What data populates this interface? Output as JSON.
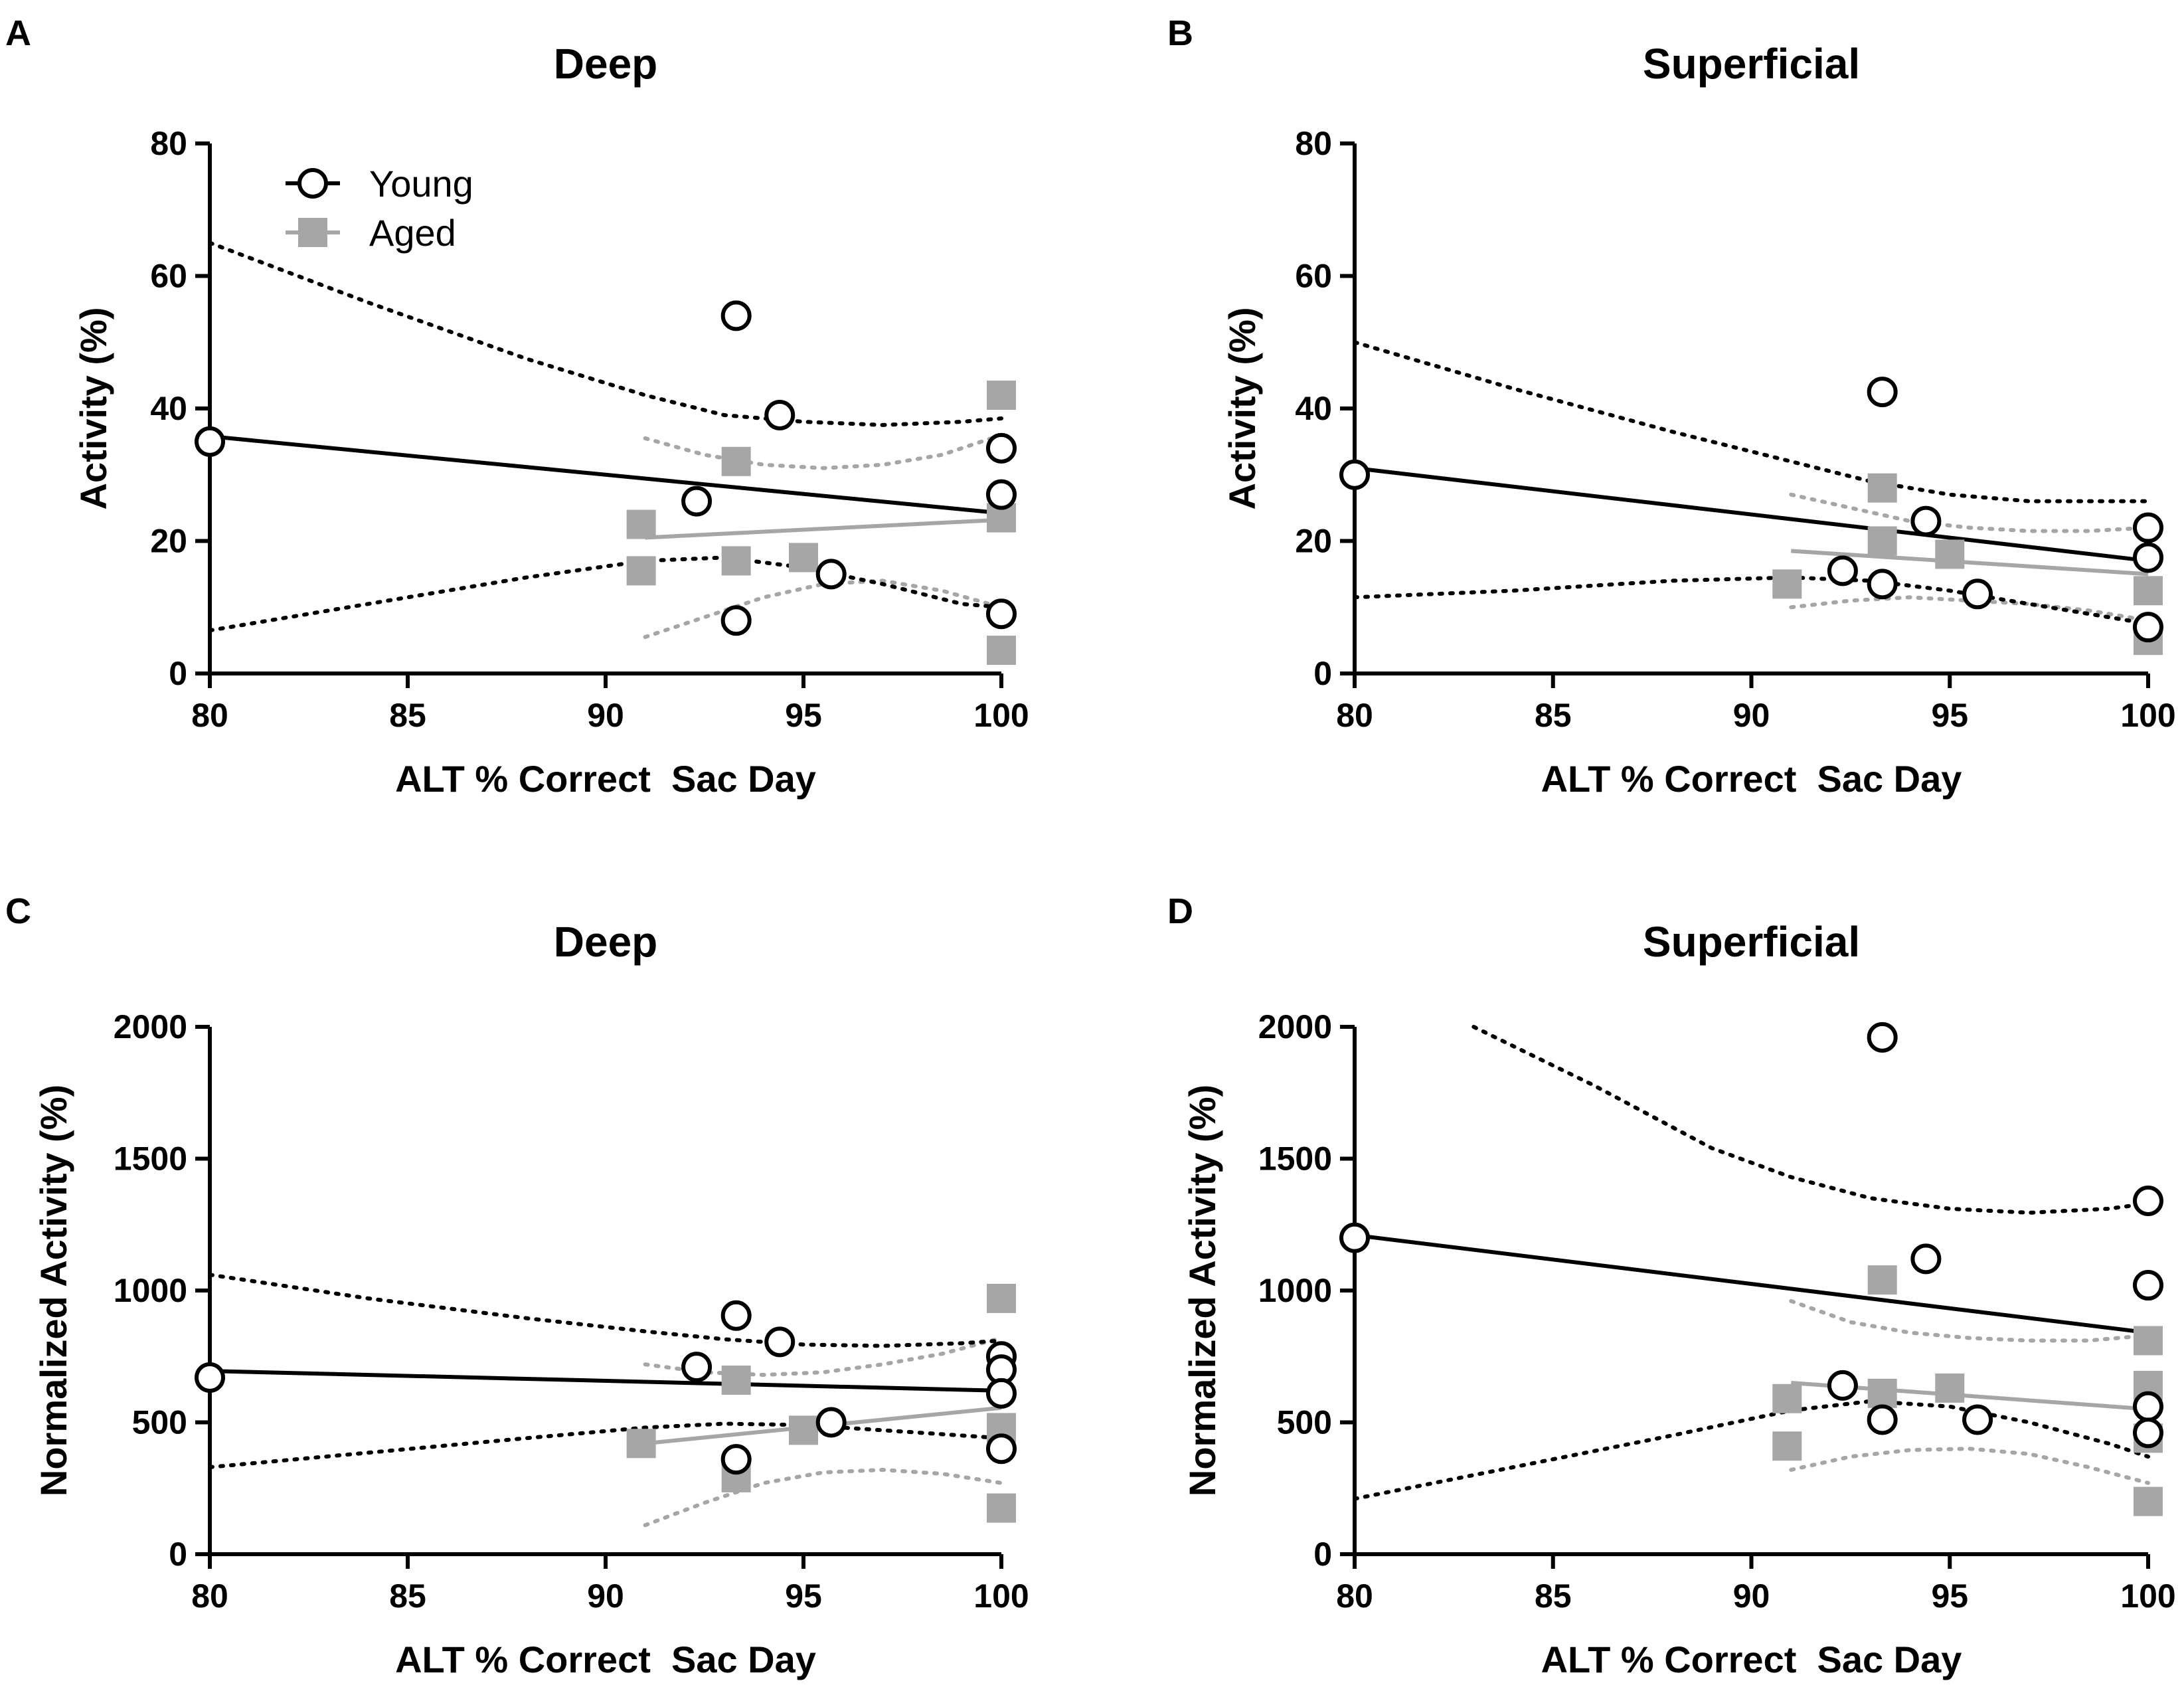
{
  "colors": {
    "young": "#000000",
    "aged": "#a6a6a6"
  },
  "legend": {
    "young_label": "Young",
    "aged_label": "Aged"
  },
  "chart_data": [
    {
      "id": "A",
      "letter": "A",
      "type": "scatter",
      "title": "Deep",
      "xlabel": "ALT % Correct  Sac Day",
      "ylabel": "Activity (%)",
      "xlim": [
        80,
        100
      ],
      "ylim": [
        0,
        80
      ],
      "xticks": [
        80,
        85,
        90,
        95,
        100
      ],
      "yticks": [
        0,
        20,
        40,
        60,
        80
      ],
      "show_legend": true,
      "series": [
        {
          "name": "Young",
          "marker": "circle",
          "points": [
            [
              80,
              35
            ],
            [
              92.3,
              26
            ],
            [
              93.3,
              54
            ],
            [
              93.3,
              8
            ],
            [
              94.4,
              39
            ],
            [
              95.7,
              15
            ],
            [
              100,
              34
            ],
            [
              100,
              27
            ],
            [
              100,
              9
            ]
          ],
          "fit": [
            [
              80,
              35.8
            ],
            [
              100,
              24.2
            ]
          ],
          "ci_upper": [
            [
              80,
              65
            ],
            [
              84,
              56
            ],
            [
              88,
              47.5
            ],
            [
              91,
              42
            ],
            [
              93,
              39
            ],
            [
              95,
              38
            ],
            [
              97,
              37.5
            ],
            [
              99,
              38
            ],
            [
              100,
              38.5
            ]
          ],
          "ci_lower": [
            [
              80,
              6.5
            ],
            [
              84,
              10.5
            ],
            [
              88,
              14.5
            ],
            [
              91,
              17
            ],
            [
              93,
              17.5
            ],
            [
              95,
              16
            ],
            [
              97,
              13.5
            ],
            [
              99,
              10.5
            ],
            [
              100,
              10
            ]
          ]
        },
        {
          "name": "Aged",
          "marker": "square",
          "points": [
            [
              90.9,
              22.5
            ],
            [
              90.9,
              15.5
            ],
            [
              93.3,
              32
            ],
            [
              93.3,
              17
            ],
            [
              95,
              17.5
            ],
            [
              100,
              42
            ],
            [
              100,
              23.5
            ],
            [
              100,
              3.5
            ]
          ],
          "fit": [
            [
              91,
              20.5
            ],
            [
              100,
              23.2
            ]
          ],
          "ci_upper": [
            [
              91,
              35.5
            ],
            [
              92.5,
              33
            ],
            [
              94,
              31.5
            ],
            [
              95.5,
              31
            ],
            [
              97,
              31.5
            ],
            [
              98.5,
              33
            ],
            [
              100,
              36
            ]
          ],
          "ci_lower": [
            [
              91,
              5.5
            ],
            [
              92.5,
              8.5
            ],
            [
              94,
              11.5
            ],
            [
              95.5,
              13.5
            ],
            [
              97,
              14
            ],
            [
              98.5,
              12.5
            ],
            [
              100,
              10
            ]
          ]
        }
      ]
    },
    {
      "id": "B",
      "letter": "B",
      "type": "scatter",
      "title": "Superficial",
      "xlabel": "ALT % Correct  Sac Day",
      "ylabel": "Activity (%)",
      "xlim": [
        80,
        100
      ],
      "ylim": [
        0,
        80
      ],
      "xticks": [
        80,
        85,
        90,
        95,
        100
      ],
      "yticks": [
        0,
        20,
        40,
        60,
        80
      ],
      "show_legend": false,
      "series": [
        {
          "name": "Young",
          "marker": "circle",
          "points": [
            [
              80,
              30
            ],
            [
              92.3,
              15.5
            ],
            [
              93.3,
              42.5
            ],
            [
              93.3,
              13.5
            ],
            [
              94.4,
              23
            ],
            [
              95.7,
              12
            ],
            [
              100,
              22
            ],
            [
              100,
              17.5
            ],
            [
              100,
              7
            ]
          ],
          "fit": [
            [
              80,
              31
            ],
            [
              100,
              17
            ]
          ],
          "ci_upper": [
            [
              80,
              50
            ],
            [
              84,
              43
            ],
            [
              88,
              36.5
            ],
            [
              91,
              32
            ],
            [
              93,
              29
            ],
            [
              95,
              27
            ],
            [
              97,
              26
            ],
            [
              99,
              26
            ],
            [
              100,
              26
            ]
          ],
          "ci_lower": [
            [
              80,
              11.5
            ],
            [
              84,
              12.5
            ],
            [
              88,
              14
            ],
            [
              91,
              14.5
            ],
            [
              93,
              14
            ],
            [
              95,
              12.5
            ],
            [
              97,
              10.5
            ],
            [
              99,
              8.5
            ],
            [
              100,
              7.5
            ]
          ]
        },
        {
          "name": "Aged",
          "marker": "square",
          "points": [
            [
              90.9,
              13.5
            ],
            [
              93.3,
              28
            ],
            [
              93.3,
              20
            ],
            [
              95,
              18
            ],
            [
              100,
              12.5
            ],
            [
              100,
              5
            ]
          ],
          "fit": [
            [
              91,
              18.5
            ],
            [
              100,
              15
            ]
          ],
          "ci_upper": [
            [
              91,
              27
            ],
            [
              92.5,
              25
            ],
            [
              94,
              23
            ],
            [
              95.5,
              22
            ],
            [
              97,
              21.5
            ],
            [
              98.5,
              21.5
            ],
            [
              100,
              22
            ]
          ],
          "ci_lower": [
            [
              91,
              10
            ],
            [
              92.5,
              11
            ],
            [
              94,
              11.5
            ],
            [
              95.5,
              11
            ],
            [
              97,
              10.5
            ],
            [
              98.5,
              9.5
            ],
            [
              100,
              8
            ]
          ]
        }
      ]
    },
    {
      "id": "C",
      "letter": "C",
      "type": "scatter",
      "title": "Deep",
      "xlabel": "ALT % Correct  Sac Day",
      "ylabel": "Normalized Activity (%)",
      "xlim": [
        80,
        100
      ],
      "ylim": [
        0,
        2000
      ],
      "xticks": [
        80,
        85,
        90,
        95,
        100
      ],
      "yticks": [
        0,
        500,
        1000,
        1500,
        2000
      ],
      "show_legend": false,
      "series": [
        {
          "name": "Young",
          "marker": "circle",
          "points": [
            [
              80,
              670
            ],
            [
              92.3,
              710
            ],
            [
              93.3,
              905
            ],
            [
              93.3,
              360
            ],
            [
              94.4,
              805
            ],
            [
              95.7,
              500
            ],
            [
              100,
              750
            ],
            [
              100,
              700
            ],
            [
              100,
              610
            ],
            [
              100,
              400
            ]
          ],
          "fit": [
            [
              80,
              695
            ],
            [
              100,
              620
            ]
          ],
          "ci_upper": [
            [
              80,
              1060
            ],
            [
              84,
              970
            ],
            [
              88,
              895
            ],
            [
              91,
              845
            ],
            [
              93,
              815
            ],
            [
              95,
              795
            ],
            [
              97,
              790
            ],
            [
              99,
              800
            ],
            [
              100,
              810
            ]
          ],
          "ci_lower": [
            [
              80,
              330
            ],
            [
              84,
              385
            ],
            [
              88,
              440
            ],
            [
              91,
              480
            ],
            [
              93,
              495
            ],
            [
              95,
              490
            ],
            [
              97,
              470
            ],
            [
              99,
              450
            ],
            [
              100,
              440
            ]
          ]
        },
        {
          "name": "Aged",
          "marker": "square",
          "points": [
            [
              90.9,
              420
            ],
            [
              93.3,
              660
            ],
            [
              93.3,
              290
            ],
            [
              95,
              470
            ],
            [
              100,
              970
            ],
            [
              100,
              480
            ],
            [
              100,
              175
            ]
          ],
          "fit": [
            [
              91,
              420
            ],
            [
              100,
              555
            ]
          ],
          "ci_upper": [
            [
              91,
              720
            ],
            [
              92.5,
              690
            ],
            [
              94,
              680
            ],
            [
              95.5,
              690
            ],
            [
              97,
              720
            ],
            [
              98.5,
              760
            ],
            [
              100,
              820
            ]
          ],
          "ci_lower": [
            [
              91,
              110
            ],
            [
              92.5,
              195
            ],
            [
              94,
              270
            ],
            [
              95.5,
              310
            ],
            [
              97,
              320
            ],
            [
              98.5,
              305
            ],
            [
              100,
              270
            ]
          ]
        }
      ]
    },
    {
      "id": "D",
      "letter": "D",
      "type": "scatter",
      "title": "Superficial",
      "xlabel": "ALT % Correct  Sac Day",
      "ylabel": "Normalized Activity (%)",
      "xlim": [
        80,
        100
      ],
      "ylim": [
        0,
        2000
      ],
      "xticks": [
        80,
        85,
        90,
        95,
        100
      ],
      "yticks": [
        0,
        500,
        1000,
        1500,
        2000
      ],
      "show_legend": false,
      "series": [
        {
          "name": "Young",
          "marker": "circle",
          "points": [
            [
              80,
              1200
            ],
            [
              92.3,
              640
            ],
            [
              93.3,
              1960
            ],
            [
              93.3,
              510
            ],
            [
              94.4,
              1120
            ],
            [
              95.7,
              510
            ],
            [
              100,
              1340
            ],
            [
              100,
              1020
            ],
            [
              100,
              560
            ],
            [
              100,
              460
            ]
          ],
          "fit": [
            [
              80,
              1210
            ],
            [
              100,
              840
            ]
          ],
          "ci_upper": [
            [
              83,
              2000
            ],
            [
              86,
              1780
            ],
            [
              89,
              1540
            ],
            [
              91,
              1430
            ],
            [
              93,
              1350
            ],
            [
              95,
              1310
            ],
            [
              97,
              1295
            ],
            [
              99,
              1310
            ],
            [
              100,
              1330
            ]
          ],
          "ci_lower": [
            [
              80,
              210
            ],
            [
              84,
              330
            ],
            [
              88,
              450
            ],
            [
              91,
              545
            ],
            [
              93,
              580
            ],
            [
              95,
              560
            ],
            [
              97,
              500
            ],
            [
              99,
              420
            ],
            [
              100,
              370
            ]
          ]
        },
        {
          "name": "Aged",
          "marker": "square",
          "points": [
            [
              90.9,
              590
            ],
            [
              90.9,
              410
            ],
            [
              93.3,
              1040
            ],
            [
              93.3,
              610
            ],
            [
              95,
              630
            ],
            [
              100,
              810
            ],
            [
              100,
              640
            ],
            [
              100,
              440
            ],
            [
              100,
              200
            ]
          ],
          "fit": [
            [
              91,
              650
            ],
            [
              100,
              550
            ]
          ],
          "ci_upper": [
            [
              91,
              960
            ],
            [
              92.5,
              880
            ],
            [
              94,
              840
            ],
            [
              95.5,
              820
            ],
            [
              97,
              810
            ],
            [
              98.5,
              810
            ],
            [
              100,
              830
            ]
          ],
          "ci_lower": [
            [
              91,
              320
            ],
            [
              92.5,
              370
            ],
            [
              94,
              395
            ],
            [
              95.5,
              400
            ],
            [
              97,
              380
            ],
            [
              98.5,
              330
            ],
            [
              100,
              270
            ]
          ]
        }
      ]
    }
  ]
}
